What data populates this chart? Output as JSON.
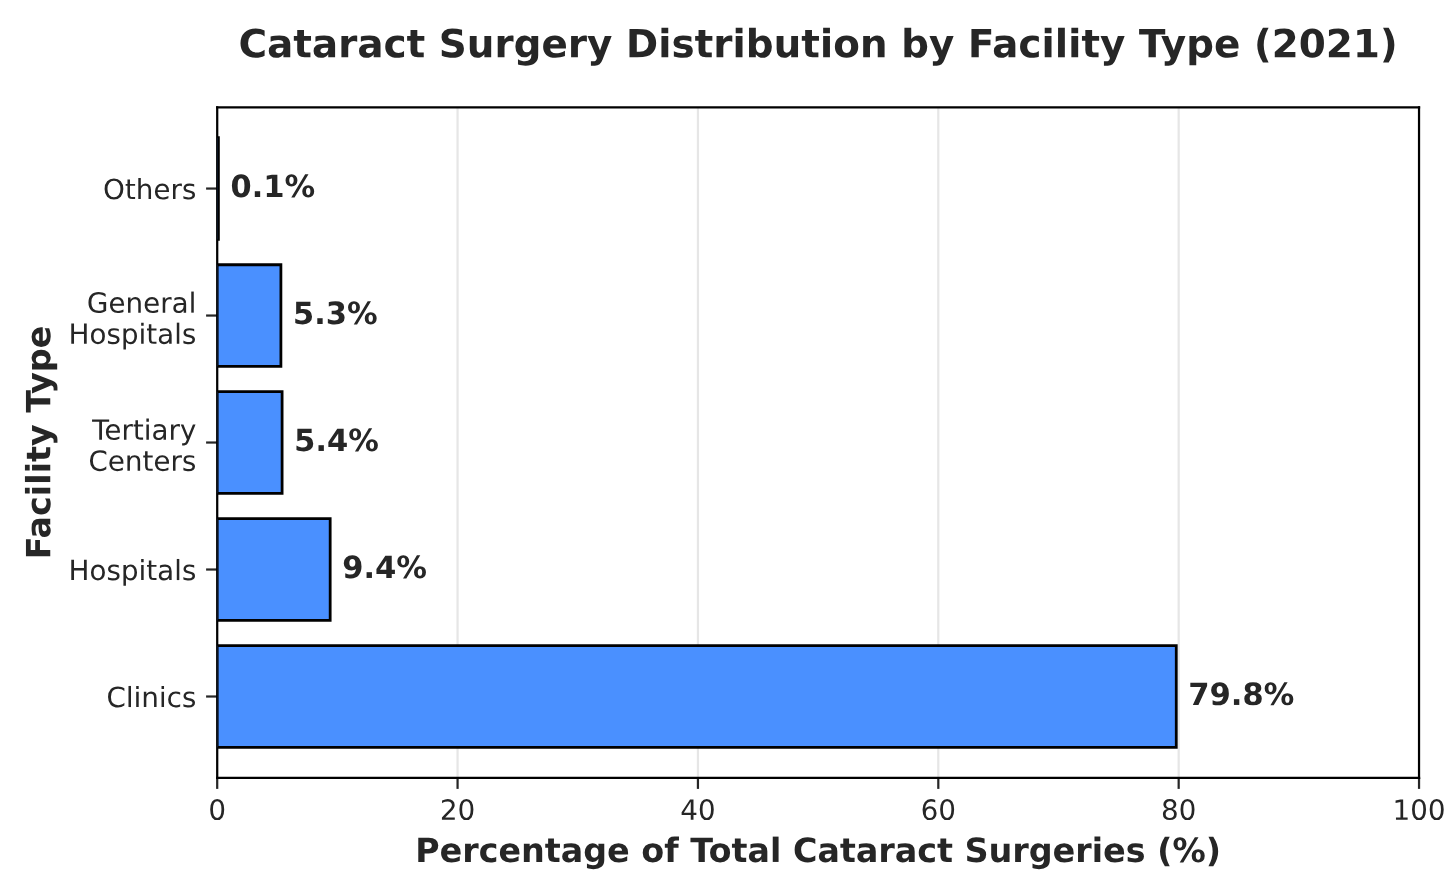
{
  "chart_data": {
    "type": "bar",
    "orientation": "horizontal",
    "title": "Cataract Surgery Distribution by Facility Type (2021)",
    "xlabel": "Percentage of Total Cataract Surgeries (%)",
    "ylabel": "Facility Type",
    "categories": [
      "Others",
      "General\nHospitals",
      "Tertiary\nCenters",
      "Hospitals",
      "Clinics"
    ],
    "values": [
      0.1,
      5.3,
      5.4,
      9.4,
      79.8
    ],
    "value_labels": [
      "0.1%",
      "5.3%",
      "5.4%",
      "9.4%",
      "79.8%"
    ],
    "color": "#4a90ff",
    "xlim": [
      0,
      100
    ],
    "xticks": [
      0,
      20,
      40,
      60,
      80,
      100
    ],
    "grid": "x"
  }
}
